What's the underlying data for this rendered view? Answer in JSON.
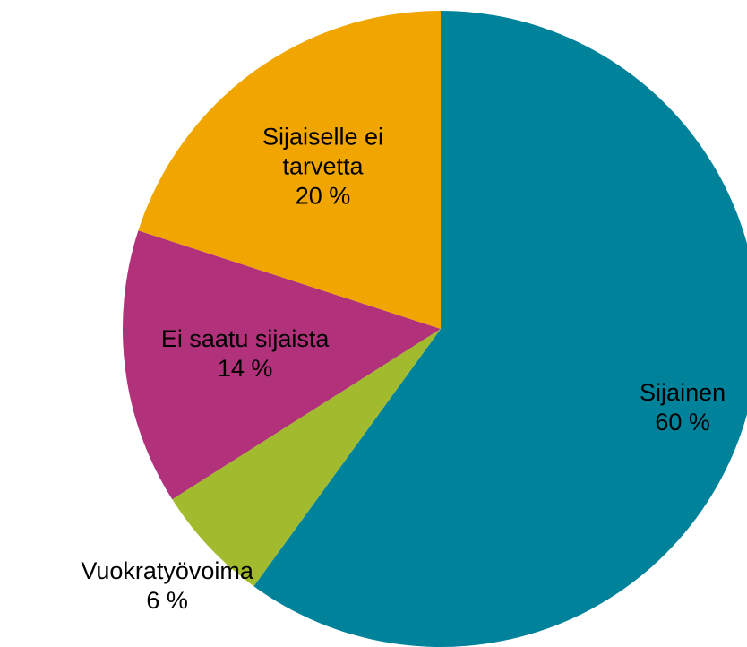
{
  "chart_data": {
    "type": "pie",
    "categories": [
      "Sijainen",
      "Vuokratyövoima",
      "Ei saatu sijaista",
      "Sijaiselle ei tarvetta"
    ],
    "values": [
      60,
      6,
      14,
      20
    ],
    "value_labels": [
      "60 %",
      "6 %",
      "14 %",
      "20 %"
    ],
    "colors": [
      "#00829b",
      "#a2bb2e",
      "#b1317a",
      "#f0a500"
    ]
  }
}
